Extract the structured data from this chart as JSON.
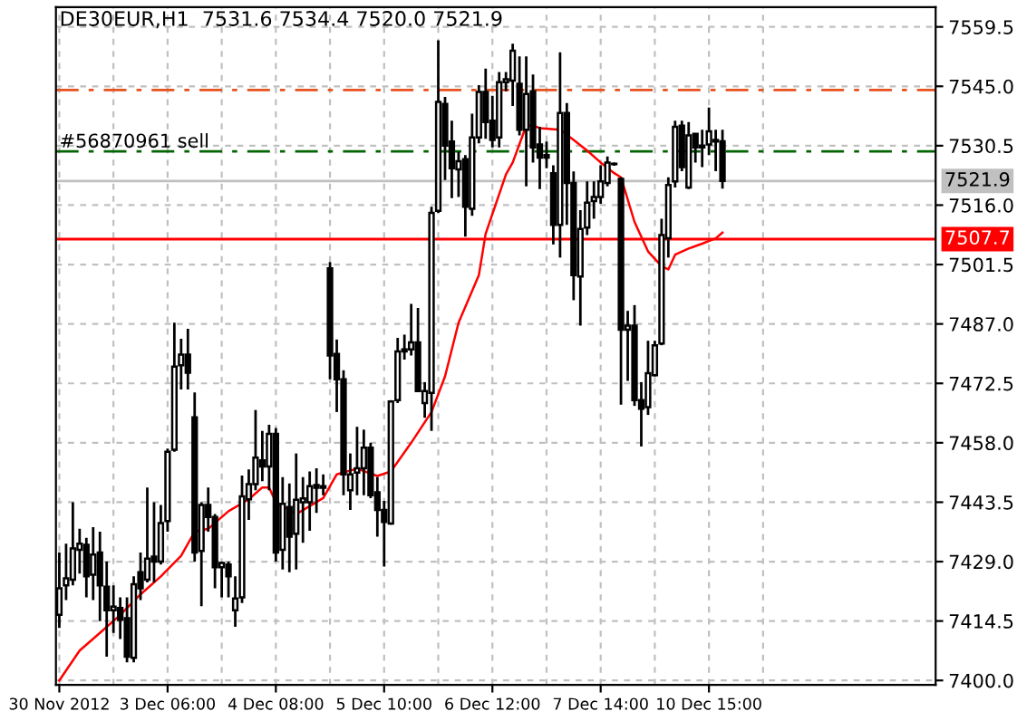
{
  "chart_data": {
    "type": "candlestick",
    "title": "DE30EUR,H1  7531.6 7534.4 7520.0 7521.9",
    "color": "#000000",
    "categories": [
      "30 Nov 2012",
      null,
      null,
      null,
      null,
      null,
      null,
      null,
      null,
      null,
      null,
      null,
      null,
      null,
      null,
      null,
      "3 Dec 06:00",
      null,
      null,
      null,
      null,
      null,
      null,
      null,
      null,
      null,
      null,
      null,
      null,
      null,
      null,
      null,
      "4 Dec 08:00",
      null,
      null,
      null,
      null,
      null,
      null,
      null,
      null,
      null,
      null,
      null,
      null,
      null,
      null,
      null,
      "5 Dec 10:00",
      null,
      null,
      null,
      null,
      null,
      null,
      null,
      null,
      null,
      null,
      null,
      null,
      null,
      null,
      null,
      "6 Dec 12:00",
      null,
      null,
      null,
      null,
      null,
      null,
      null,
      null,
      null,
      null,
      null,
      null,
      null,
      null,
      null,
      "7 Dec 14:00",
      null,
      null,
      null,
      null,
      null,
      null,
      null,
      null,
      null,
      null,
      null,
      null,
      null,
      null,
      null,
      "10 Dec 15:00",
      null,
      null,
      null,
      null,
      null,
      null,
      null,
      null,
      null,
      null,
      null,
      null,
      null,
      null,
      null,
      null,
      null,
      null,
      null,
      null,
      null,
      null,
      null,
      null,
      null,
      null,
      null,
      null,
      null,
      null,
      null,
      null,
      null
    ],
    "ohlc": [
      [
        7416.0,
        7431.2,
        7412.8,
        7422.5
      ],
      [
        7423.2,
        7433.4,
        7419.6,
        7424.9
      ],
      [
        7424.6,
        7443.5,
        7423.2,
        7432.2
      ],
      [
        7431.9,
        7437.0,
        7426.1,
        7433.4
      ],
      [
        7433.1,
        7434.8,
        7420.3,
        7425.4
      ],
      [
        7425.8,
        7437.4,
        7419.6,
        7430.7
      ],
      [
        7431.2,
        7436.3,
        7414.5,
        7423.2
      ],
      [
        7422.9,
        7429.0,
        7405.8,
        7417.1
      ],
      [
        7417.1,
        7423.2,
        7411.6,
        7418.0
      ],
      [
        7417.7,
        7420.3,
        7410.1,
        7414.8
      ],
      [
        7415.2,
        7420.3,
        7404.4,
        7405.8
      ],
      [
        7405.5,
        7425.4,
        7404.4,
        7423.5
      ],
      [
        7426.4,
        7431.2,
        7419.6,
        7422.5
      ],
      [
        7424.6,
        7447.1,
        7423.9,
        7429.7
      ],
      [
        7430.2,
        7443.5,
        7423.9,
        7429.0
      ],
      [
        7429.0,
        7442.8,
        7428.3,
        7438.4
      ],
      [
        7438.9,
        7456.6,
        7436.3,
        7455.8
      ],
      [
        7456.3,
        7487.3,
        7455.8,
        7476.6
      ],
      [
        7476.9,
        7483.4,
        7471.0,
        7479.5
      ],
      [
        7479.5,
        7485.8,
        7471.0,
        7475.1
      ],
      [
        7464.2,
        7470.3,
        7429.0,
        7431.2
      ],
      [
        7431.6,
        7443.5,
        7418.1,
        7442.8
      ],
      [
        7442.8,
        7447.1,
        7436.3,
        7439.9
      ],
      [
        7439.9,
        7440.6,
        7422.5,
        7427.6
      ],
      [
        7427.6,
        7429.0,
        7420.3,
        7428.7
      ],
      [
        7428.3,
        7429.0,
        7420.3,
        7425.4
      ],
      [
        7417.1,
        7425.4,
        7413.1,
        7420.0
      ],
      [
        7420.3,
        7450.0,
        7418.9,
        7444.9
      ],
      [
        7444.2,
        7451.5,
        7439.2,
        7447.9
      ],
      [
        7447.9,
        7466.0,
        7446.4,
        7454.4
      ],
      [
        7453.7,
        7460.9,
        7448.6,
        7452.2
      ],
      [
        7452.2,
        7462.4,
        7446.4,
        7460.2
      ],
      [
        7460.2,
        7461.6,
        7429.0,
        7431.2
      ],
      [
        7431.9,
        7449.6,
        7427.1,
        7443.1
      ],
      [
        7442.3,
        7448.1,
        7426.4,
        7435.1
      ],
      [
        7435.8,
        7455.4,
        7427.1,
        7444.1
      ],
      [
        7443.5,
        7449.6,
        7433.6,
        7444.4
      ],
      [
        7443.5,
        7451.0,
        7436.5,
        7447.4
      ],
      [
        7447.7,
        7451.8,
        7440.9,
        7447.0
      ],
      [
        7447.4,
        7450.3,
        7445.2,
        7447.0
      ],
      [
        7500.6,
        7502.1,
        7473.5,
        7479.3
      ],
      [
        7479.7,
        7483.2,
        7465.5,
        7473.5
      ],
      [
        7473.5,
        7475.7,
        7445.2,
        7450.3
      ],
      [
        7446.4,
        7455.4,
        7441.6,
        7450.3
      ],
      [
        7450.7,
        7461.9,
        7445.2,
        7451.8
      ],
      [
        7451.8,
        7461.2,
        7445.2,
        7456.8
      ],
      [
        7456.8,
        7458.0,
        7444.5,
        7445.2
      ],
      [
        7445.9,
        7449.6,
        7435.1,
        7441.6
      ],
      [
        7441.6,
        7443.8,
        7427.8,
        7438.7
      ],
      [
        7438.3,
        7468.4,
        7438.0,
        7468.1
      ],
      [
        7468.4,
        7483.6,
        7467.7,
        7480.3
      ],
      [
        7480.3,
        7484.4,
        7478.3,
        7480.8
      ],
      [
        7480.8,
        7491.9,
        7479.3,
        7482.5
      ],
      [
        7482.5,
        7490.9,
        7470.6,
        7470.6
      ],
      [
        7467.7,
        7472.8,
        7464.1,
        7470.6
      ],
      [
        7470.2,
        7515.6,
        7460.9,
        7514.1
      ],
      [
        7514.6,
        7556.2,
        7514.1,
        7541.2
      ],
      [
        7540.7,
        7542.4,
        7522.1,
        7530.5
      ],
      [
        7531.5,
        7536.6,
        7517.7,
        7525.0
      ],
      [
        7524.7,
        7529.0,
        7518.0,
        7526.7
      ],
      [
        7527.2,
        7528.2,
        7508.3,
        7515.6
      ],
      [
        7515.1,
        7538.3,
        7513.4,
        7532.5
      ],
      [
        7532.5,
        7545.3,
        7531.1,
        7543.6
      ],
      [
        7543.6,
        7549.3,
        7532.2,
        7536.3
      ],
      [
        7536.6,
        7542.7,
        7530.1,
        7531.9
      ],
      [
        7532.5,
        7548.5,
        7530.1,
        7546.0
      ],
      [
        7546.0,
        7548.5,
        7543.8,
        7546.7
      ],
      [
        7546.4,
        7555.4,
        7540.2,
        7553.7
      ],
      [
        7545.6,
        7552.3,
        7533.0,
        7534.4
      ],
      [
        7534.4,
        7552.3,
        7520.6,
        7543.1
      ],
      [
        7543.8,
        7547.9,
        7526.4,
        7530.1
      ],
      [
        7530.8,
        7535.1,
        7519.9,
        7527.6
      ],
      [
        7528.2,
        7531.5,
        7525.0,
        7527.6
      ],
      [
        7523.8,
        7525.7,
        7506.4,
        7511.2
      ],
      [
        7511.2,
        7553.3,
        7503.2,
        7538.5
      ],
      [
        7538.5,
        7540.9,
        7511.2,
        7521.4
      ],
      [
        7521.4,
        7524.2,
        7492.8,
        7498.9
      ],
      [
        7498.6,
        7514.8,
        7486.6,
        7510.2
      ],
      [
        7510.5,
        7521.8,
        7508.7,
        7516.6
      ],
      [
        7517.0,
        7521.8,
        7512.7,
        7518.0
      ],
      [
        7518.0,
        7525.7,
        7516.3,
        7521.8
      ],
      [
        7521.4,
        7527.9,
        7520.6,
        7526.4
      ],
      [
        7526.1,
        7526.4,
        7525.6,
        7526.0
      ],
      [
        7522.4,
        7522.8,
        7467.3,
        7485.6
      ],
      [
        7485.6,
        7490.2,
        7473.1,
        7486.6
      ],
      [
        7486.6,
        7491.6,
        7467.0,
        7468.4
      ],
      [
        7468.4,
        7472.8,
        7457.1,
        7466.3
      ],
      [
        7466.7,
        7482.9,
        7464.8,
        7475.0
      ],
      [
        7474.5,
        7482.9,
        7474.2,
        7481.8
      ],
      [
        7482.2,
        7512.7,
        7481.8,
        7508.7
      ],
      [
        7507.9,
        7522.8,
        7503.2,
        7520.9
      ],
      [
        7521.8,
        7536.6,
        7520.3,
        7535.1
      ],
      [
        7535.4,
        7536.6,
        7524.3,
        7525.3
      ],
      [
        7520.3,
        7536.3,
        7519.9,
        7533.0
      ],
      [
        7533.4,
        7533.4,
        7526.4,
        7530.1
      ],
      [
        7530.1,
        7534.4,
        7525.3,
        7530.5
      ],
      [
        7530.8,
        7539.8,
        7528.2,
        7534.0
      ],
      [
        7531.5,
        7534.4,
        7524.3,
        7531.9
      ],
      [
        7531.6,
        7534.4,
        7520.0,
        7521.9
      ],
      null,
      null,
      null,
      null,
      null,
      null,
      null,
      null,
      null,
      null,
      null,
      null,
      null,
      null,
      null,
      null,
      null,
      null,
      null,
      null,
      null,
      null,
      null,
      null,
      null,
      null,
      null,
      null,
      null,
      null,
      null
    ],
    "series": [
      {
        "type": "line",
        "color": "#ff0000",
        "values": [
          7400.0,
          null,
          null,
          7407.3,
          null,
          null,
          7411.6,
          null,
          null,
          7416.0,
          null,
          null,
          7421.0,
          null,
          null,
          7425.4,
          null,
          null,
          7430.4,
          null,
          7436.3,
          null,
          7437.0,
          null,
          null,
          7441.3,
          null,
          null,
          7444.2,
          null,
          7447.1,
          7447.1,
          7443.5,
          null,
          null,
          7440.6,
          null,
          null,
          null,
          7444.5,
          null,
          7450.3,
          null,
          null,
          7451.7,
          null,
          null,
          7449.9,
          null,
          7451.0,
          null,
          null,
          7458.0,
          null,
          null,
          7465.5,
          null,
          7474.2,
          null,
          7487.3,
          null,
          null,
          7498.9,
          7509.0,
          null,
          null,
          7523.5,
          7526.4,
          null,
          7535.4,
          7535.4,
          7534.8,
          null,
          null,
          7534.4,
          null,
          7531.9,
          null,
          7529.3,
          null,
          7526.4,
          null,
          7523.8,
          7522.8,
          null,
          7511.9,
          null,
          7504.7,
          null,
          7501.1,
          7500.3,
          7503.9,
          null,
          7505.4,
          null,
          7506.6,
          null,
          7507.9,
          7509.3,
          null,
          null,
          null,
          null,
          null,
          null,
          null,
          null,
          null,
          null,
          null,
          null,
          null,
          null,
          null,
          null,
          null,
          null,
          null,
          null,
          null,
          null,
          null,
          null,
          null,
          null,
          null,
          null,
          null,
          null,
          null
        ]
      }
    ],
    "ylim": [
      7398.9,
      7564.3
    ],
    "yticks": [
      {
        "value": 7400.0,
        "label": "7400.0"
      },
      {
        "value": 7414.5,
        "label": "7414.5"
      },
      {
        "value": 7429.0,
        "label": "7429.0"
      },
      {
        "value": 7443.5,
        "label": "7443.5"
      },
      {
        "value": 7458.0,
        "label": "7458.0"
      },
      {
        "value": 7472.5,
        "label": "7472.5"
      },
      {
        "value": 7487.0,
        "label": "7487.0"
      },
      {
        "value": 7501.5,
        "label": "7501.5"
      },
      {
        "value": 7516.0,
        "label": "7516.0"
      },
      {
        "value": 7530.5,
        "label": "7530.5"
      },
      {
        "value": 7545.0,
        "label": "7545.0"
      },
      {
        "value": 7559.5,
        "label": "7559.5"
      }
    ],
    "ref_lines": [
      {
        "axis": "y",
        "value": 7544.1,
        "color": "#e8501c",
        "line_style": "dashed"
      },
      {
        "axis": "y",
        "value": 7529.1,
        "color": "#006400",
        "line_style": "dashed"
      },
      {
        "axis": "y",
        "value": 7521.9,
        "label": "7521.9",
        "color": "#c0c0c0",
        "line_style": "solid"
      },
      {
        "axis": "y",
        "value": 7507.7,
        "label": "7507.7",
        "color": "#ff0000",
        "line_style": "solid"
      }
    ],
    "annotations": [
      {
        "text": "#56870961 sell",
        "y": 7529.1
      }
    ],
    "grid": true
  }
}
